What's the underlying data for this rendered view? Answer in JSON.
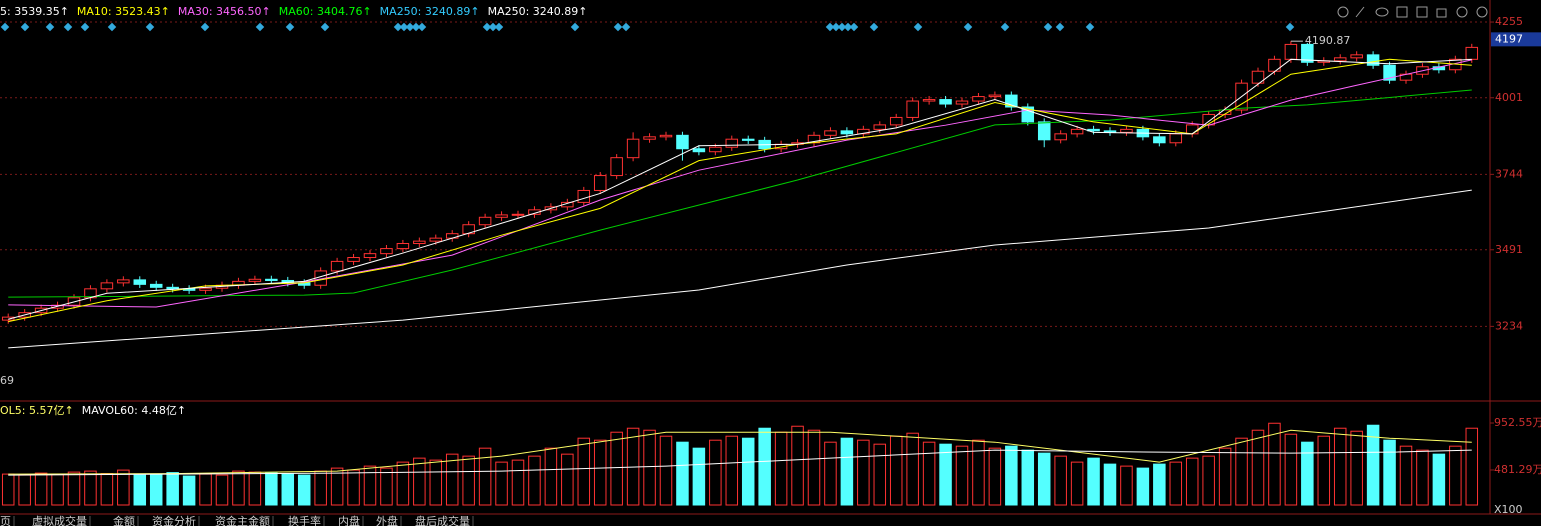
{
  "chart_data": [
    {
      "type": "candlestick",
      "header": [
        {
          "text": "5: 3539.35↑",
          "color": "#ffffff"
        },
        {
          "text": "MA10: 3523.43↑",
          "color": "#ffff00"
        },
        {
          "text": "MA30: 3456.50↑",
          "color": "#ff66ff"
        },
        {
          "text": "MA60: 3404.76↑",
          "color": "#00ff00"
        },
        {
          "text": "MA250: 3240.89↑",
          "color": "#33ccff"
        },
        {
          "text": "MA250: 3240.89↑",
          "color": "#ffffff"
        }
      ],
      "up_color": "#ff3232",
      "down_color": "#54ffff",
      "open": [
        3255,
        3265,
        3280,
        3295,
        3305,
        3330,
        3360,
        3380,
        3390,
        3375,
        3365,
        3360,
        3355,
        3362,
        3372,
        3385,
        3392,
        3388,
        3380,
        3372,
        3420,
        3452,
        3465,
        3478,
        3495,
        3512,
        3520,
        3530,
        3545,
        3575,
        3600,
        3608,
        3610,
        3625,
        3635,
        3650,
        3690,
        3740,
        3800,
        3862,
        3870,
        3875,
        3830,
        3820,
        3835,
        3862,
        3858,
        3830,
        3845,
        3850,
        3875,
        3890,
        3880,
        3895,
        3910,
        3935,
        3990,
        3995,
        3980,
        3990,
        4005,
        4010,
        3970,
        3920,
        3860,
        3880,
        3895,
        3890,
        3885,
        3895,
        3870,
        3850,
        3880,
        3910,
        3945,
        3960,
        4050,
        4090,
        4130,
        4180,
        4120,
        4125,
        4135,
        4145,
        4110,
        4060,
        4080,
        4105,
        4095,
        4130
      ],
      "high": [
        3277,
        3292,
        3307,
        3317,
        3342,
        3372,
        3392,
        3402,
        3402,
        3387,
        3377,
        3372,
        3374,
        3384,
        3397,
        3404,
        3404,
        3400,
        3392,
        3432,
        3464,
        3477,
        3490,
        3507,
        3524,
        3532,
        3542,
        3557,
        3587,
        3612,
        3620,
        3622,
        3637,
        3647,
        3662,
        3702,
        3752,
        3812,
        3885,
        3882,
        3887,
        3887,
        3842,
        3847,
        3874,
        3874,
        3870,
        3857,
        3862,
        3887,
        3902,
        3902,
        3907,
        3922,
        3947,
        4002,
        4007,
        4007,
        4002,
        4017,
        4022,
        4022,
        3982,
        3932,
        3892,
        3907,
        3907,
        3902,
        3907,
        3907,
        3882,
        3892,
        3922,
        3957,
        3972,
        4062,
        4102,
        4142,
        4190.87,
        4185,
        4137,
        4147,
        4157,
        4157,
        4122,
        4092,
        4117,
        4117,
        4142,
        4182
      ],
      "low": [
        3243,
        3253,
        3268,
        3283,
        3293,
        3318,
        3348,
        3368,
        3363,
        3353,
        3348,
        3343,
        3343,
        3350,
        3360,
        3373,
        3376,
        3368,
        3360,
        3360,
        3408,
        3440,
        3453,
        3466,
        3483,
        3500,
        3508,
        3518,
        3533,
        3563,
        3588,
        3596,
        3598,
        3613,
        3623,
        3638,
        3678,
        3728,
        3788,
        3850,
        3858,
        3790,
        3808,
        3808,
        3823,
        3846,
        3818,
        3818,
        3833,
        3838,
        3863,
        3868,
        3868,
        3883,
        3898,
        3923,
        3978,
        3968,
        3968,
        3978,
        3993,
        3958,
        3908,
        3835,
        3848,
        3868,
        3878,
        3873,
        3873,
        3858,
        3838,
        3838,
        3868,
        3898,
        3933,
        3948,
        4038,
        4078,
        4118,
        4108,
        4108,
        4113,
        4123,
        4098,
        4048,
        4048,
        4068,
        4083,
        4083,
        4118
      ],
      "close": [
        3265,
        3280,
        3295,
        3305,
        3330,
        3360,
        3380,
        3390,
        3375,
        3365,
        3360,
        3355,
        3362,
        3372,
        3385,
        3392,
        3388,
        3380,
        3372,
        3420,
        3452,
        3465,
        3478,
        3495,
        3512,
        3520,
        3530,
        3545,
        3575,
        3600,
        3608,
        3610,
        3625,
        3635,
        3650,
        3690,
        3740,
        3800,
        3862,
        3870,
        3875,
        3830,
        3820,
        3835,
        3862,
        3858,
        3830,
        3845,
        3850,
        3875,
        3890,
        3880,
        3895,
        3910,
        3935,
        3990,
        3995,
        3980,
        3990,
        4005,
        4010,
        3970,
        3920,
        3860,
        3880,
        3895,
        3890,
        3885,
        3895,
        3870,
        3850,
        3880,
        3910,
        3945,
        3960,
        4050,
        4090,
        4130,
        4180,
        4120,
        4125,
        4135,
        4145,
        4110,
        4060,
        4080,
        4105,
        4095,
        4130,
        4170
      ],
      "ma_lines": [
        {
          "color": "#ffffff",
          "x": [
            0,
            24,
            42,
            51,
            60,
            73,
            89
          ],
          "values": [
            3162,
            3255,
            3356,
            3440,
            3507,
            3564,
            3691
          ]
        },
        {
          "color": "#00cc00",
          "x": [
            0,
            18,
            21,
            27,
            36,
            48,
            60,
            67,
            75,
            79,
            89
          ],
          "values": [
            3332,
            3339,
            3346,
            3423,
            3557,
            3725,
            3910,
            3926,
            3966,
            3977,
            4027
          ]
        },
        {
          "color": "#ff66ff",
          "x": [
            0,
            9,
            18,
            27,
            36,
            42,
            51,
            57,
            62,
            67,
            73,
            78,
            82,
            89
          ],
          "values": [
            3306,
            3299,
            3383,
            3473,
            3658,
            3758,
            3859,
            3909,
            3960,
            3943,
            3909,
            3993,
            4043,
            4128
          ]
        },
        {
          "color": "#ffff00",
          "x": [
            0,
            6,
            12,
            18,
            24,
            30,
            36,
            42,
            48,
            54,
            60,
            66,
            72,
            78,
            84,
            89
          ],
          "values": [
            3250,
            3320,
            3370,
            3380,
            3440,
            3540,
            3630,
            3790,
            3845,
            3880,
            3985,
            3920,
            3880,
            4080,
            4130,
            4110
          ]
        },
        {
          "color": "#ffffff",
          "x": [
            0,
            6,
            12,
            18,
            24,
            30,
            36,
            42,
            48,
            54,
            60,
            66,
            72,
            78,
            84,
            89
          ],
          "values": [
            3258,
            3345,
            3365,
            3385,
            3480,
            3580,
            3680,
            3840,
            3845,
            3900,
            3995,
            3885,
            3880,
            4130,
            4115,
            4130
          ]
        }
      ],
      "ylim": [
        2987,
        4329
      ],
      "yticks": [
        3234,
        3491,
        3744,
        4001,
        4255
      ],
      "grid": true,
      "last_price": 4197,
      "high_annotation": {
        "index": 78,
        "value": 4190.87
      },
      "low_annotation": "69"
    },
    {
      "type": "bar",
      "header": [
        {
          "text": "OL5: 5.57亿↑",
          "color": "#ffff66"
        },
        {
          "text": "MAVOL60: 4.48亿↑",
          "color": "#ffffff"
        }
      ],
      "values": [
        440,
        430,
        450,
        435,
        460,
        470,
        445,
        480,
        430,
        440,
        455,
        420,
        440,
        430,
        470,
        460,
        450,
        445,
        430,
        470,
        500,
        480,
        520,
        500,
        560,
        600,
        580,
        640,
        620,
        700,
        560,
        580,
        620,
        700,
        640,
        800,
        780,
        860,
        900,
        880,
        820,
        760,
        700,
        780,
        820,
        800,
        900,
        860,
        920,
        880,
        760,
        800,
        780,
        740,
        820,
        850,
        760,
        740,
        720,
        780,
        700,
        720,
        680,
        650,
        620,
        560,
        600,
        540,
        520,
        500,
        540,
        560,
        600,
        620,
        700,
        800,
        880,
        950,
        840,
        760,
        820,
        900,
        870,
        930,
        780,
        720,
        680,
        640,
        720,
        900
      ],
      "ma_lines": [
        {
          "color": "#ffff66",
          "x": [
            0,
            10,
            20,
            30,
            40,
            50,
            60,
            70,
            78,
            84,
            89
          ],
          "values": [
            440,
            445,
            470,
            620,
            860,
            860,
            760,
            560,
            880,
            800,
            760
          ]
        },
        {
          "color": "#ffffff",
          "x": [
            0,
            10,
            20,
            30,
            40,
            50,
            60,
            70,
            78,
            84,
            89
          ],
          "values": [
            430,
            440,
            450,
            470,
            520,
            600,
            680,
            660,
            650,
            660,
            680
          ]
        }
      ],
      "ylim": [
        130,
        1133
      ],
      "yticks": [
        {
          "value": 481.29,
          "label": "481.29万"
        },
        {
          "value": 952.55,
          "label": "952.55万"
        }
      ],
      "axis_unit": "X100"
    }
  ],
  "tabs": [
    "页",
    "虚拟成交量",
    "金额",
    "资金分析",
    "资金主金额",
    "换手率",
    "内盘",
    "外盘",
    "盘后成交量"
  ]
}
